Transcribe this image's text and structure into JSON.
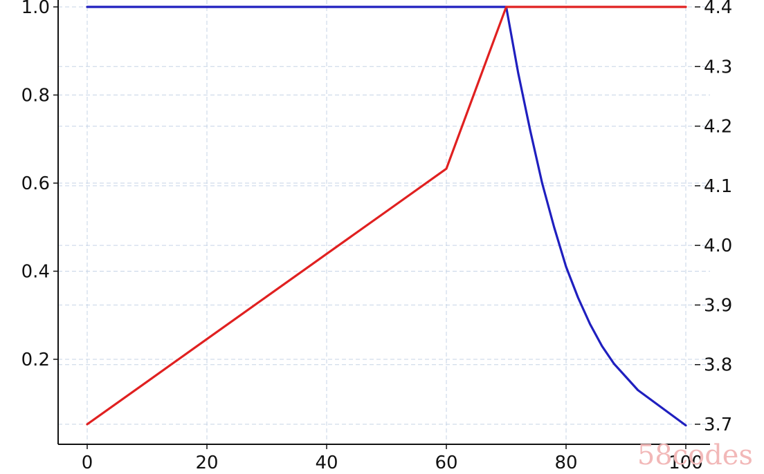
{
  "chart_data": {
    "type": "line",
    "x": [
      0,
      10,
      20,
      30,
      40,
      50,
      60,
      70,
      72,
      74,
      76,
      78,
      80,
      82,
      84,
      86,
      88,
      90,
      92,
      94,
      96,
      98,
      100
    ],
    "series": [
      {
        "axis": "left",
        "color": "#1f1fbf",
        "values": [
          1.0,
          1.0,
          1.0,
          1.0,
          1.0,
          1.0,
          1.0,
          1.0,
          0.85,
          0.72,
          0.6,
          0.5,
          0.41,
          0.34,
          0.28,
          0.23,
          0.19,
          0.16,
          0.13,
          0.11,
          0.09,
          0.07,
          0.05
        ]
      },
      {
        "axis": "right",
        "color": "#e02020",
        "values": [
          3.7,
          3.7714,
          3.8429,
          3.9143,
          3.9857,
          4.0571,
          4.1286,
          4.4,
          4.4,
          4.4,
          4.4,
          4.4,
          4.4,
          4.4,
          4.4,
          4.4,
          4.4,
          4.4,
          4.4,
          4.4,
          4.4,
          4.4,
          4.4
        ]
      }
    ],
    "xlim": [
      -5,
      102
    ],
    "ylim_left": [
      0.0,
      1.0
    ],
    "ylim_right": [
      3.7,
      4.4
    ],
    "xticks": [
      "0",
      "20",
      "40",
      "60",
      "80",
      "100"
    ],
    "yticks_left": [
      "0.2",
      "0.4",
      "0.6",
      "0.8",
      "1.0"
    ],
    "yticks_right": [
      "3.7",
      "3.8",
      "3.9",
      "4.0",
      "4.1",
      "4.2",
      "4.3",
      "4.4"
    ],
    "ylabel_left": "",
    "grid": true,
    "colors": {
      "left_axis_label": "#2a3fbf",
      "grid": "#c5d3e6",
      "axis": "#111111"
    }
  },
  "watermark": {
    "text": "58codes"
  }
}
